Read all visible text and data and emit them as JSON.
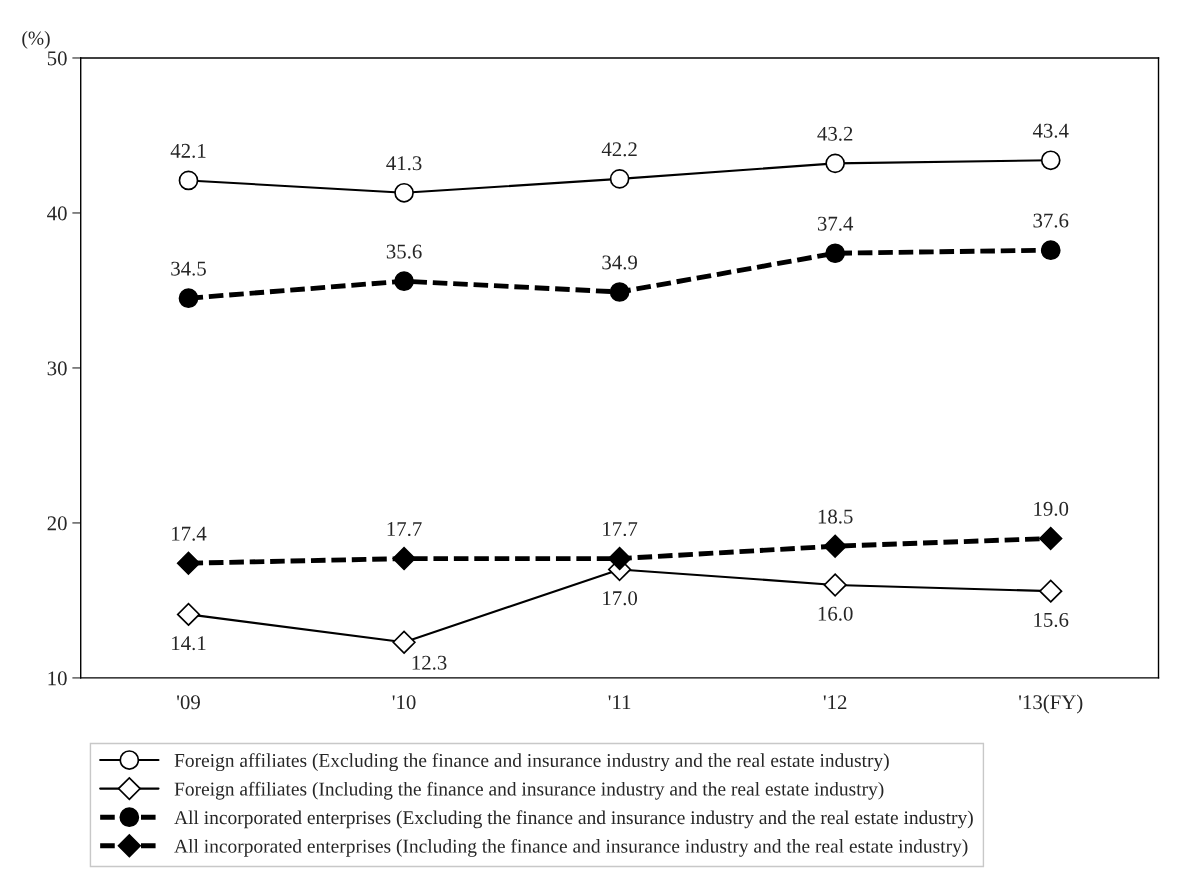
{
  "chart_data": {
    "type": "line",
    "ylabel": "(%)",
    "categories": [
      "'09",
      "'10",
      "'11",
      "'12",
      "'13(FY)"
    ],
    "ylim": [
      10,
      50
    ],
    "yticks": [
      10,
      20,
      30,
      40,
      50
    ],
    "grid": false,
    "legend": "bottom",
    "series": [
      {
        "name": "Foreign affiliates (Excluding the finance and insurance industry and the real estate industry)",
        "color": "#000000",
        "marker": "circle",
        "line_style": "solid",
        "values": [
          42.1,
          41.3,
          42.2,
          43.2,
          43.4
        ],
        "value_labels": [
          "42.1",
          "41.3",
          "42.2",
          "43.2",
          "43.4"
        ]
      },
      {
        "name": "Foreign affiliates (Including the finance and insurance industry and the real estate industry)",
        "color": "#000000",
        "marker": "diamond",
        "line_style": "solid",
        "values": [
          14.1,
          12.3,
          17.0,
          16.0,
          15.6
        ],
        "value_labels": [
          "14.1",
          "12.3",
          "17.0",
          "16.0",
          "15.6"
        ]
      },
      {
        "name": "All incorporated enterprises (Excluding the finance and insurance industry and the real estate industry)",
        "color": "#000000",
        "marker": "circle",
        "line_style": "dashed",
        "values": [
          34.5,
          35.6,
          34.9,
          37.4,
          37.6
        ],
        "value_labels": [
          "34.5",
          "35.6",
          "34.9",
          "37.4",
          "37.6"
        ]
      },
      {
        "name": "All incorporated enterprises (Including the finance and insurance industry and the real estate industry)",
        "color": "#000000",
        "marker": "diamond",
        "line_style": "dashed",
        "values": [
          17.4,
          17.7,
          17.7,
          18.5,
          19.0
        ],
        "value_labels": [
          "17.4",
          "17.7",
          "17.7",
          "18.5",
          "19.0"
        ]
      }
    ]
  }
}
